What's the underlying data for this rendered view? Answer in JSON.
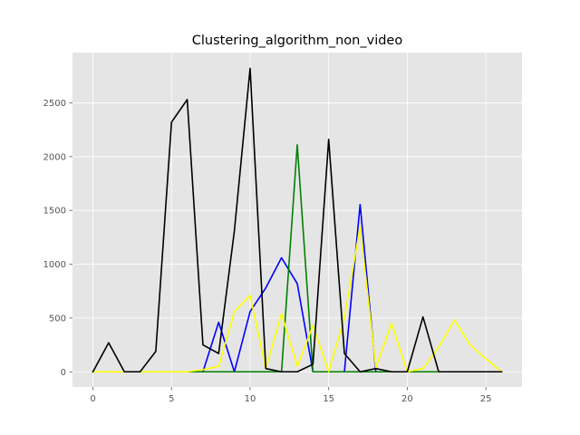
{
  "chart_data": {
    "type": "line",
    "title": "Clustering_algorithm_non_video",
    "xlabel": "",
    "ylabel": "",
    "xlim": [
      -1.3,
      27.3
    ],
    "ylim": [
      -141,
      2967
    ],
    "xticks": [
      0,
      5,
      10,
      15,
      20,
      25
    ],
    "yticks": [
      0,
      500,
      1000,
      1500,
      2000,
      2500
    ],
    "grid": true,
    "legend": "none",
    "background": "#e5e5e5",
    "x": [
      0,
      1,
      2,
      3,
      4,
      5,
      6,
      7,
      8,
      9,
      10,
      11,
      12,
      13,
      14,
      15,
      16,
      17,
      18,
      19,
      20,
      21,
      22,
      23,
      24,
      25,
      26
    ],
    "series": [
      {
        "color": "#0000ff",
        "values": [
          0,
          0,
          0,
          0,
          0,
          0,
          0,
          0,
          460,
          0,
          560,
          780,
          1060,
          820,
          0,
          0,
          0,
          1555,
          0,
          0,
          0,
          0,
          0,
          0,
          0,
          0,
          0
        ]
      },
      {
        "color": "#008000",
        "values": [
          0,
          0,
          0,
          0,
          0,
          0,
          0,
          0,
          0,
          0,
          0,
          0,
          0,
          2110,
          0,
          0,
          0,
          0,
          0,
          0,
          0,
          0,
          0,
          0,
          0,
          0,
          0
        ]
      },
      {
        "color": "#ffff00",
        "values": [
          0,
          0,
          0,
          0,
          0,
          0,
          0,
          20,
          50,
          560,
          710,
          30,
          540,
          50,
          430,
          0,
          500,
          1350,
          40,
          450,
          0,
          30,
          230,
          480,
          250,
          120,
          0
        ]
      },
      {
        "color": "#000000",
        "values": [
          0,
          270,
          0,
          0,
          190,
          2320,
          2530,
          250,
          170,
          1310,
          2820,
          30,
          0,
          0,
          70,
          2160,
          170,
          0,
          30,
          0,
          0,
          510,
          0,
          0,
          0,
          0,
          0
        ]
      }
    ]
  }
}
